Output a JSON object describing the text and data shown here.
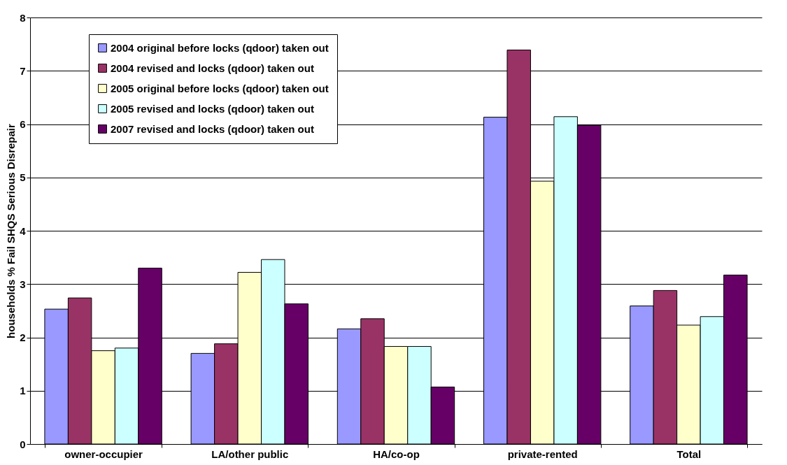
{
  "chart_data": {
    "type": "bar",
    "ylabel": "households % Fail SHQS Serious Disrepair",
    "categories": [
      "owner-occupier",
      "LA/other public",
      "HA/co-op",
      "private-rented",
      "Total"
    ],
    "series": [
      {
        "name": "2004 original before locks (qdoor) taken out",
        "color": "#9999ff",
        "values": [
          2.53,
          1.7,
          2.16,
          6.13,
          2.59
        ]
      },
      {
        "name": "2004 revised and locks (qdoor) taken out",
        "color": "#993366",
        "values": [
          2.74,
          1.88,
          2.35,
          7.39,
          2.88
        ]
      },
      {
        "name": "2005 original before locks (qdoor) taken out",
        "color": "#ffffcc",
        "values": [
          1.75,
          3.22,
          1.83,
          4.93,
          2.23
        ]
      },
      {
        "name": "2005 revised and locks (qdoor) taken out",
        "color": "#ccffff",
        "values": [
          1.8,
          3.46,
          1.83,
          6.14,
          2.39
        ]
      },
      {
        "name": "2007 revised and locks (qdoor) taken out",
        "color": "#660066",
        "values": [
          3.3,
          2.63,
          1.07,
          5.98,
          3.17
        ]
      }
    ],
    "ylim": [
      0,
      8
    ],
    "yticks": [
      0,
      1,
      2,
      3,
      4,
      5,
      6,
      7,
      8
    ],
    "grid": "y",
    "legend": "top left"
  }
}
